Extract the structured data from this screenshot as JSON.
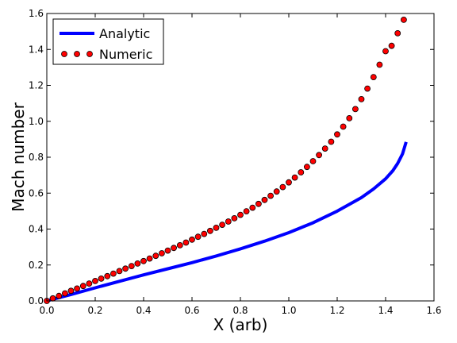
{
  "chart_data": {
    "type": "line",
    "xlabel": "X (arb)",
    "ylabel": "Mach number",
    "xlim": [
      0.0,
      1.6
    ],
    "ylim": [
      0.0,
      1.6
    ],
    "x_ticks": [
      "0.0",
      "0.2",
      "0.4",
      "0.6",
      "0.8",
      "1.0",
      "1.2",
      "1.4",
      "1.6"
    ],
    "y_ticks": [
      "0.0",
      "0.2",
      "0.4",
      "0.6",
      "0.8",
      "1.0",
      "1.2",
      "1.4",
      "1.6"
    ],
    "grid": false,
    "legend": {
      "placement": "top-left"
    },
    "series": [
      {
        "name": "Analytic",
        "style": "line",
        "color": "#0000ff",
        "x": [
          0.0,
          0.1,
          0.2,
          0.3,
          0.4,
          0.5,
          0.6,
          0.7,
          0.8,
          0.9,
          1.0,
          1.1,
          1.2,
          1.3,
          1.35,
          1.4,
          1.43,
          1.45,
          1.47,
          1.485
        ],
        "y": [
          0.0,
          0.036,
          0.073,
          0.109,
          0.145,
          0.179,
          0.213,
          0.25,
          0.29,
          0.333,
          0.38,
          0.435,
          0.5,
          0.575,
          0.623,
          0.68,
          0.725,
          0.765,
          0.818,
          0.885
        ]
      },
      {
        "name": "Numeric",
        "style": "markers",
        "color": "#ff0000",
        "x": [
          0.0,
          0.025,
          0.05,
          0.075,
          0.1,
          0.125,
          0.15,
          0.175,
          0.2,
          0.225,
          0.25,
          0.275,
          0.3,
          0.325,
          0.35,
          0.375,
          0.4,
          0.425,
          0.45,
          0.475,
          0.5,
          0.525,
          0.55,
          0.575,
          0.6,
          0.625,
          0.65,
          0.675,
          0.7,
          0.725,
          0.75,
          0.775,
          0.8,
          0.825,
          0.85,
          0.875,
          0.9,
          0.925,
          0.95,
          0.975,
          1.0,
          1.025,
          1.05,
          1.075,
          1.1,
          1.125,
          1.15,
          1.175,
          1.2,
          1.225,
          1.25,
          1.275,
          1.3,
          1.325,
          1.35,
          1.375,
          1.4,
          1.425,
          1.45,
          1.475
        ],
        "y": [
          0.0,
          0.014,
          0.028,
          0.042,
          0.056,
          0.069,
          0.083,
          0.097,
          0.111,
          0.124,
          0.138,
          0.152,
          0.166,
          0.18,
          0.194,
          0.208,
          0.222,
          0.236,
          0.251,
          0.265,
          0.28,
          0.295,
          0.31,
          0.325,
          0.341,
          0.357,
          0.373,
          0.39,
          0.407,
          0.424,
          0.442,
          0.46,
          0.479,
          0.499,
          0.519,
          0.54,
          0.562,
          0.585,
          0.609,
          0.634,
          0.66,
          0.687,
          0.716,
          0.746,
          0.778,
          0.812,
          0.848,
          0.886,
          0.927,
          0.97,
          1.017,
          1.068,
          1.123,
          1.182,
          1.246,
          1.315,
          1.39,
          1.42,
          1.49,
          1.565
        ]
      }
    ]
  }
}
